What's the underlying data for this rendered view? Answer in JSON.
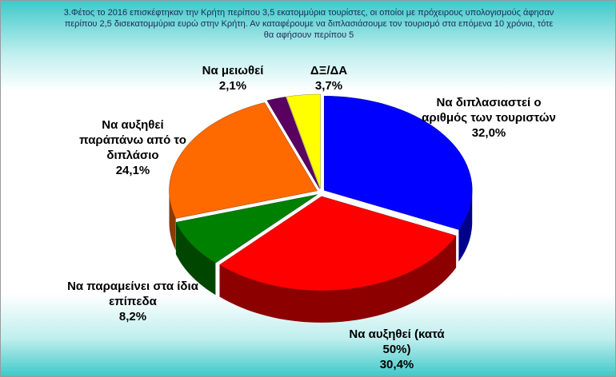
{
  "chart_data": {
    "type": "pie3d",
    "title": "3.Φέτος το 2016 επισκέφτηκαν την Κρήτη περίπου 3,5 εκατομμύρια τουρίστες, οι οποίοι με πρόχειρους υπολογισμούς άφησαν περίπου 2,5 δισεκατομμύρια ευρώ στην Κρήτη. Αν καταφέρουμε να διπλασιάσουμε τον τουρισμό στα επόμενα 10 χρόνια, τότε θα αφήσουν περίπου 5",
    "categories": [
      "Να διπλασιαστεί ο αριθμός των τουριστών",
      "Να αυξηθεί (κατά 50%)",
      "Να παραμείνει στα ίδια επίπεδα",
      "Να αυξηθεί παράπάνω από το διπλάσιο",
      "Να μειωθεί",
      "ΔΞ/ΔΑ"
    ],
    "values": [
      32.0,
      30.4,
      8.2,
      24.1,
      2.1,
      3.7
    ],
    "value_labels": [
      "32,0%",
      "30,4%",
      "8,2%",
      "24,1%",
      "2,1%",
      "3,7%"
    ],
    "colors": [
      "#0000ff",
      "#ff0000",
      "#008000",
      "#ff6a00",
      "#5a0060",
      "#ffff00"
    ]
  }
}
